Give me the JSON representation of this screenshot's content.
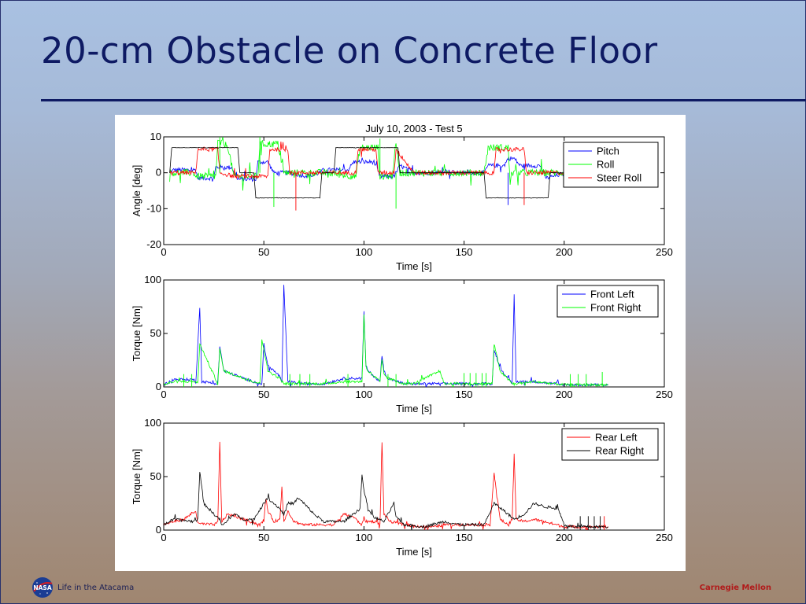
{
  "slide": {
    "title": "20-cm Obstacle on Concrete Floor",
    "footer_left": "Life in the Atacama",
    "footer_right": "Carnegie Mellon",
    "logo_text": "NASA",
    "colors": {
      "title": "#0e1a63",
      "footer_right": "#b11a1a"
    }
  },
  "chart_data": [
    {
      "type": "line",
      "title": "July 10, 2003 - Test 5",
      "xlabel": "Time [s]",
      "ylabel": "Angle [deg]",
      "xlim": [
        0,
        250
      ],
      "ylim": [
        -20,
        10
      ],
      "xticks": [
        0,
        50,
        100,
        150,
        200,
        250
      ],
      "yticks": [
        -20,
        -10,
        0,
        10
      ],
      "legend_position": "top-right",
      "series": [
        {
          "name": "Pitch",
          "color": "#0000ff",
          "noise": 0.6,
          "x": [
            3,
            5,
            16,
            17,
            25,
            26,
            34,
            37,
            46,
            47,
            52,
            55,
            62,
            70,
            75,
            80,
            85,
            92,
            95,
            97,
            105,
            108,
            115,
            118,
            125,
            136,
            140,
            146,
            160,
            162,
            170,
            172,
            175,
            178,
            188,
            191,
            198,
            222
          ],
          "y": [
            0,
            0.8,
            0.8,
            -1.5,
            -1.5,
            1.5,
            1.5,
            -1.8,
            -1.8,
            3,
            3,
            0,
            0,
            -0.8,
            -0.8,
            0.8,
            0.8,
            0.8,
            3,
            3,
            3,
            -1,
            -1,
            2,
            0,
            0,
            0.6,
            0,
            0,
            2,
            2,
            4,
            4,
            2,
            2,
            -1.5,
            -0.5,
            0
          ]
        },
        {
          "name": "Roll",
          "color": "#00ff00",
          "noise": 1.0,
          "x": [
            3,
            15,
            16,
            17,
            26,
            27,
            32,
            35,
            43,
            47,
            48,
            57,
            60,
            62,
            80,
            96,
            98,
            107,
            108,
            110,
            114,
            116,
            118,
            125,
            138,
            144,
            160,
            162,
            172,
            173,
            174,
            178,
            182,
            190,
            222
          ],
          "y": [
            0,
            0,
            -1,
            -1,
            -1,
            8.5,
            7.5,
            -1,
            -1,
            -1,
            8,
            8,
            0,
            0,
            0,
            -1,
            7,
            7,
            -1,
            -1,
            -1,
            8,
            0,
            0,
            0,
            0,
            0,
            7,
            7,
            -2,
            0,
            0,
            0,
            0,
            0
          ]
        },
        {
          "name": "Steer Roll",
          "color": "#ff0000",
          "noise": 0.6,
          "x": [
            3,
            16,
            17,
            27,
            28,
            35,
            36,
            52,
            53,
            62,
            63,
            80,
            96,
            97,
            106,
            107,
            115,
            116,
            125,
            160,
            165,
            166,
            180,
            181,
            190,
            222
          ],
          "y": [
            0,
            0,
            6.5,
            6.5,
            0,
            -1,
            -1,
            -1,
            6.5,
            6.5,
            0,
            0,
            0,
            6.5,
            6.5,
            0,
            0,
            6.5,
            0,
            0,
            0,
            6.5,
            6.5,
            0,
            0,
            0
          ]
        },
        {
          "name": "",
          "color": "#000000",
          "noise": 0.05,
          "x": [
            3,
            4,
            37,
            38,
            45,
            46,
            78,
            79,
            85,
            86,
            117,
            118,
            160,
            161,
            192,
            193,
            222
          ],
          "y": [
            0,
            7,
            7,
            0,
            0,
            -7,
            -7,
            0,
            0,
            7,
            7,
            0,
            0,
            -7,
            -7,
            0,
            0
          ]
        }
      ],
      "spikes": [
        {
          "x": 28,
          "y": 10,
          "color": "#00ff00"
        },
        {
          "x": 48,
          "y": 10,
          "color": "#00ff00"
        },
        {
          "x": 55,
          "y": -9.5,
          "color": "#00ff00"
        },
        {
          "x": 66,
          "y": -10.5,
          "color": "#ff0000"
        },
        {
          "x": 108,
          "y": 9.5,
          "color": "#00ff00"
        },
        {
          "x": 116,
          "y": -10,
          "color": "#00ff00"
        },
        {
          "x": 172,
          "y": -9,
          "color": "#0000ff"
        },
        {
          "x": 180,
          "y": -9,
          "color": "#ff0000"
        }
      ]
    },
    {
      "type": "line",
      "xlabel": "Time [s]",
      "ylabel": "Torque [Nm]",
      "xlim": [
        0,
        250
      ],
      "ylim": [
        0,
        100
      ],
      "xticks": [
        0,
        50,
        100,
        150,
        200,
        250
      ],
      "yticks": [
        0,
        50,
        100
      ],
      "legend_position": "top-right",
      "series": [
        {
          "name": "Front Left",
          "color": "#0000ff",
          "noise": 1.2,
          "x": [
            0,
            5,
            15,
            16,
            18,
            19,
            27,
            28,
            30,
            40,
            48,
            49,
            50,
            52,
            58,
            59,
            60,
            62,
            70,
            80,
            90,
            99,
            100,
            101,
            102,
            108,
            109,
            110,
            112,
            120,
            130,
            150,
            163,
            164,
            165,
            168,
            173,
            174,
            175,
            176,
            185,
            200,
            205,
            210,
            220,
            222
          ],
          "y": [
            2,
            7,
            7,
            3,
            75,
            5,
            3,
            38,
            15,
            8,
            3,
            3,
            40,
            20,
            10,
            3,
            95,
            5,
            3,
            3,
            8,
            8,
            70,
            20,
            15,
            5,
            30,
            15,
            8,
            3,
            3,
            3,
            3,
            3,
            35,
            18,
            5,
            3,
            87,
            5,
            5,
            2,
            2,
            2,
            2,
            2
          ]
        },
        {
          "name": "Front Right",
          "color": "#00ff00",
          "noise": 1.2,
          "x": [
            0,
            5,
            16,
            17,
            18,
            27,
            28,
            30,
            40,
            48,
            49,
            52,
            58,
            60,
            62,
            70,
            80,
            90,
            99,
            100,
            101,
            102,
            108,
            109,
            110,
            112,
            120,
            125,
            138,
            140,
            150,
            163,
            164,
            165,
            168,
            173,
            174,
            176,
            185,
            200,
            205,
            210,
            220,
            222
          ],
          "y": [
            2,
            5,
            5,
            3,
            40,
            3,
            35,
            15,
            8,
            3,
            45,
            15,
            8,
            3,
            3,
            3,
            3,
            5,
            5,
            68,
            20,
            15,
            5,
            25,
            12,
            8,
            3,
            3,
            15,
            3,
            3,
            3,
            3,
            40,
            15,
            5,
            3,
            3,
            5,
            2,
            2,
            2,
            2,
            2
          ]
        }
      ],
      "spikes": [
        {
          "x": 10,
          "y": 12,
          "color": "#00ff00"
        },
        {
          "x": 14,
          "y": 12,
          "color": "#00ff00"
        },
        {
          "x": 63,
          "y": 12,
          "color": "#00ff00"
        },
        {
          "x": 68,
          "y": 12,
          "color": "#00ff00"
        },
        {
          "x": 73,
          "y": 12,
          "color": "#00ff00"
        },
        {
          "x": 92,
          "y": 12,
          "color": "#00ff00"
        },
        {
          "x": 112,
          "y": 12,
          "color": "#00ff00"
        },
        {
          "x": 116,
          "y": 12,
          "color": "#00ff00"
        },
        {
          "x": 150,
          "y": 13,
          "color": "#00ff00"
        },
        {
          "x": 153,
          "y": 13,
          "color": "#00ff00"
        },
        {
          "x": 156,
          "y": 13,
          "color": "#00ff00"
        },
        {
          "x": 159,
          "y": 13,
          "color": "#00ff00"
        },
        {
          "x": 161,
          "y": 13,
          "color": "#00ff00"
        },
        {
          "x": 203,
          "y": 12,
          "color": "#00ff00"
        },
        {
          "x": 207,
          "y": 12,
          "color": "#00ff00"
        },
        {
          "x": 211,
          "y": 12,
          "color": "#00ff00"
        },
        {
          "x": 219,
          "y": 14,
          "color": "#00ff00"
        }
      ]
    },
    {
      "type": "line",
      "xlabel": "Time [s]",
      "ylabel": "Torque [Nm]",
      "xlim": [
        0,
        250
      ],
      "ylim": [
        0,
        100
      ],
      "xticks": [
        0,
        50,
        100,
        150,
        200,
        250
      ],
      "yticks": [
        0,
        50,
        100
      ],
      "legend_position": "top-right",
      "series": [
        {
          "name": "Rear Left",
          "color": "#ff0000",
          "noise": 1.3,
          "x": [
            0,
            5,
            10,
            16,
            17,
            18,
            25,
            27,
            28,
            29,
            32,
            40,
            48,
            50,
            51,
            52,
            55,
            58,
            59,
            60,
            62,
            65,
            70,
            80,
            85,
            90,
            95,
            97,
            99,
            100,
            101,
            103,
            106,
            108,
            109,
            110,
            113,
            120,
            130,
            135,
            140,
            145,
            163,
            164,
            165,
            168,
            172,
            174,
            175,
            176,
            180,
            185,
            190,
            200,
            205,
            220,
            222
          ],
          "y": [
            5,
            8,
            10,
            18,
            6,
            6,
            5,
            7,
            82,
            8,
            15,
            10,
            5,
            8,
            30,
            18,
            8,
            10,
            40,
            8,
            18,
            8,
            5,
            5,
            5,
            15,
            12,
            8,
            5,
            12,
            8,
            8,
            8,
            5,
            82,
            15,
            8,
            5,
            3,
            3,
            5,
            5,
            5,
            30,
            53,
            10,
            5,
            10,
            72,
            10,
            8,
            10,
            8,
            3,
            3,
            3,
            3
          ]
        },
        {
          "name": "Rear Right",
          "color": "#000000",
          "noise": 1.3,
          "x": [
            0,
            5,
            15,
            17,
            18,
            20,
            25,
            28,
            29,
            30,
            35,
            40,
            45,
            50,
            52,
            55,
            58,
            60,
            62,
            65,
            67,
            70,
            75,
            80,
            90,
            98,
            99,
            100,
            102,
            105,
            110,
            115,
            116,
            120,
            130,
            140,
            148,
            160,
            165,
            170,
            175,
            180,
            185,
            190,
            197,
            200,
            205,
            210,
            222
          ],
          "y": [
            5,
            10,
            8,
            10,
            55,
            25,
            15,
            10,
            5,
            5,
            15,
            10,
            10,
            25,
            30,
            25,
            20,
            15,
            25,
            25,
            30,
            25,
            15,
            8,
            8,
            20,
            50,
            38,
            20,
            12,
            8,
            25,
            12,
            5,
            3,
            8,
            5,
            5,
            25,
            18,
            10,
            15,
            25,
            22,
            20,
            5,
            3,
            3,
            3
          ]
        }
      ],
      "spikes": [
        {
          "x": 208,
          "y": 13,
          "color": "#000000"
        },
        {
          "x": 212,
          "y": 13,
          "color": "#000000"
        },
        {
          "x": 215,
          "y": 13,
          "color": "#000000"
        },
        {
          "x": 218,
          "y": 13,
          "color": "#000000"
        },
        {
          "x": 220,
          "y": 13,
          "color": "#ff0000"
        }
      ]
    }
  ]
}
